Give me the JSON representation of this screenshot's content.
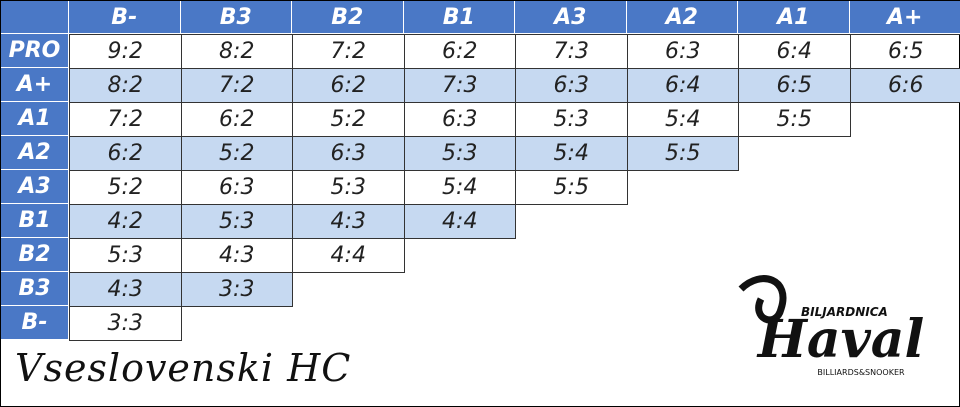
{
  "table": {
    "columns": [
      "B-",
      "B3",
      "B2",
      "B1",
      "A3",
      "A2",
      "A1",
      "A+"
    ],
    "rows": [
      {
        "label": "PRO",
        "cells": [
          "9:2",
          "8:2",
          "7:2",
          "6:2",
          "7:3",
          "6:3",
          "6:4",
          "6:5"
        ]
      },
      {
        "label": "A+",
        "cells": [
          "8:2",
          "7:2",
          "6:2",
          "7:3",
          "6:3",
          "6:4",
          "6:5",
          "6:6"
        ]
      },
      {
        "label": "A1",
        "cells": [
          "7:2",
          "6:2",
          "5:2",
          "6:3",
          "5:3",
          "5:4",
          "5:5"
        ]
      },
      {
        "label": "A2",
        "cells": [
          "6:2",
          "5:2",
          "6:3",
          "5:3",
          "5:4",
          "5:5"
        ]
      },
      {
        "label": "A3",
        "cells": [
          "5:2",
          "6:3",
          "5:3",
          "5:4",
          "5:5"
        ]
      },
      {
        "label": "B1",
        "cells": [
          "4:2",
          "5:3",
          "4:3",
          "4:4"
        ]
      },
      {
        "label": "B2",
        "cells": [
          "5:3",
          "4:3",
          "4:4"
        ]
      },
      {
        "label": "B3",
        "cells": [
          "4:3",
          "3:3"
        ]
      },
      {
        "label": "B-",
        "cells": [
          "3:3"
        ]
      }
    ]
  },
  "footer": {
    "title": "Vseslovenski HC"
  },
  "logo": {
    "top": "BILJARDNICA",
    "name": "Haval",
    "bottom": "BILLIARDS&SNOOKER"
  }
}
